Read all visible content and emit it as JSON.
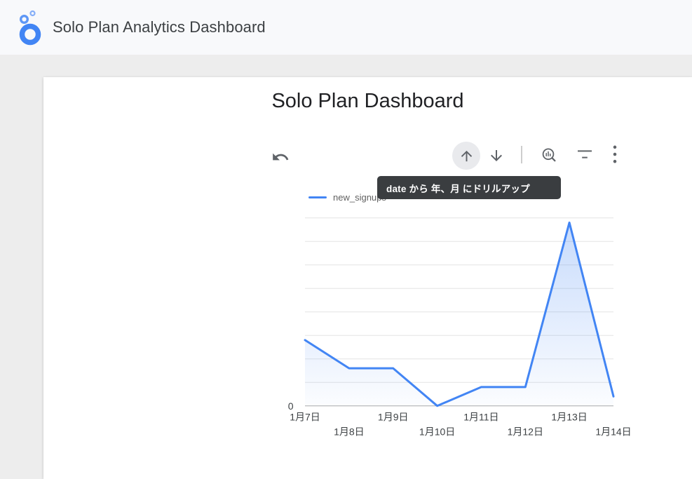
{
  "app_header": {
    "title": "Solo Plan Analytics Dashboard",
    "logo": "looker-studio-logo"
  },
  "report": {
    "title": "Solo Plan Dashboard"
  },
  "chart_toolbar": {
    "buttons": [
      "undo",
      "drill-up",
      "drill-down",
      "chart-zoom",
      "filter",
      "more-options"
    ],
    "tooltip": "date から 年、月 にドリルアップ"
  },
  "chart_data": {
    "type": "area",
    "title": "",
    "categories": [
      "1月7日",
      "1月8日",
      "1月9日",
      "1月10日",
      "1月11日",
      "1月12日",
      "1月13日",
      "1月14日"
    ],
    "series": [
      {
        "name": "new_signups",
        "color": "#4285f4",
        "values": [
          14,
          8,
          8,
          0,
          4,
          4,
          39,
          2
        ]
      }
    ],
    "xlabel": "",
    "ylabel": "",
    "ylim": [
      0,
      40
    ],
    "gridline_step": 5,
    "grid": true,
    "visible_y_tick_labels": [
      "0"
    ],
    "legend_position": "top-left",
    "x_label_layout": "staggered-two-rows"
  },
  "colors": {
    "accent": "#4285f4",
    "tooltip_bg": "#3a3d40",
    "icon_gray": "#5f6368",
    "header_bg": "#f8f9fb",
    "canvas_bg": "#ededed",
    "gridline": "#e4e4e4",
    "axis_line": "#a9a9a9"
  }
}
